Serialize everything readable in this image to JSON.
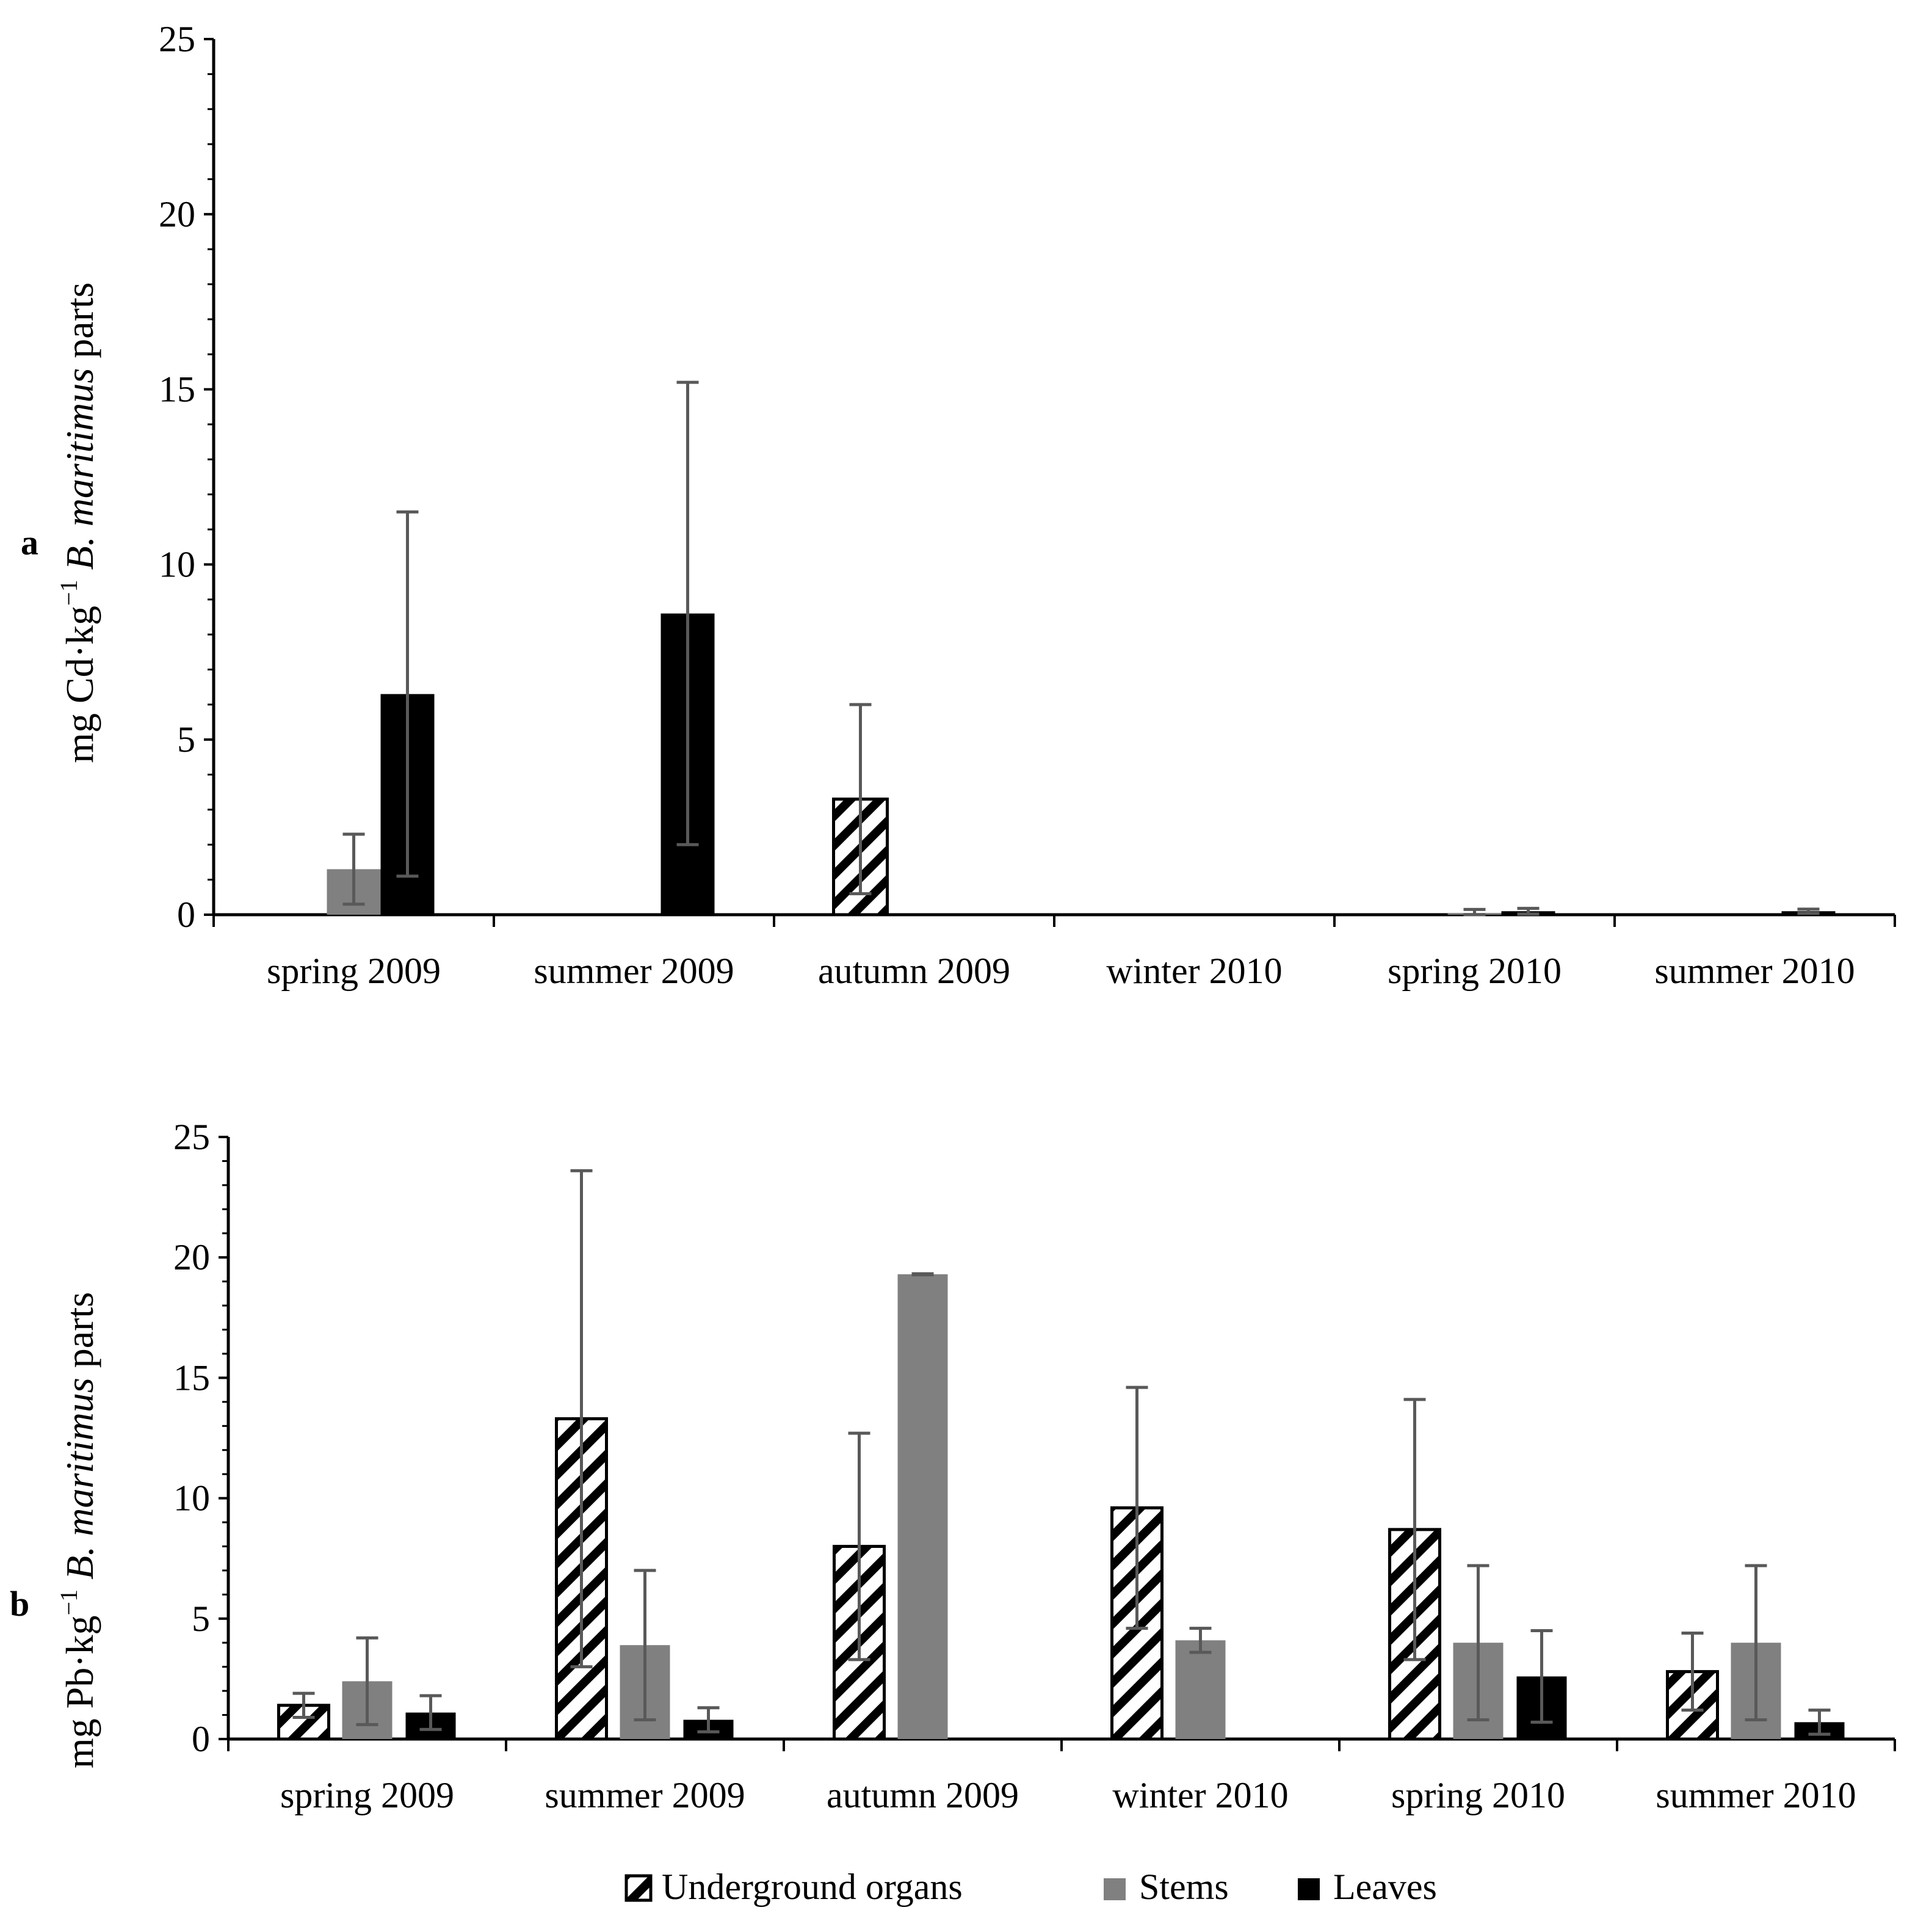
{
  "chart_data": [
    {
      "panel_label": "a",
      "type": "bar",
      "ylabel": {
        "prefix": "mg Cd·kg",
        "superscript": "−1",
        "species": "B. maritimus",
        "suffix": "parts"
      },
      "ylim": [
        0,
        25
      ],
      "yticks": [
        0,
        5,
        10,
        15,
        20,
        25
      ],
      "categories": [
        "spring 2009",
        "summer 2009",
        "autumn 2009",
        "winter 2010",
        "spring 2010",
        "summer 2010"
      ],
      "series": [
        {
          "name": "Underground organs",
          "values": [
            0,
            0,
            3.3,
            0,
            0,
            0
          ],
          "error": [
            0,
            0,
            2.7,
            0,
            0,
            0
          ]
        },
        {
          "name": "Stems",
          "values": [
            1.3,
            0,
            0,
            0,
            0.05,
            0
          ],
          "error": [
            1.0,
            0,
            0,
            0,
            0.1,
            0
          ]
        },
        {
          "name": "Leaves",
          "values": [
            6.3,
            8.6,
            0,
            0,
            0.1,
            0.1
          ],
          "error": [
            5.2,
            6.6,
            0,
            0,
            0.08,
            0.06
          ]
        }
      ],
      "layout": "cd",
      "grid": false
    },
    {
      "panel_label": "b",
      "type": "bar",
      "ylabel": {
        "prefix": "mg Pb·kg",
        "superscript": "−1",
        "species": "B. maritimus",
        "suffix": "parts"
      },
      "ylim": [
        0,
        25
      ],
      "yticks": [
        0,
        5,
        10,
        15,
        20,
        25
      ],
      "categories": [
        "spring 2009",
        "summer 2009",
        "autumn 2009",
        "winter 2010",
        "spring 2010",
        "summer 2010"
      ],
      "series": [
        {
          "name": "Underground organs",
          "values": [
            1.4,
            13.3,
            8.0,
            9.6,
            8.7,
            2.8
          ],
          "error": [
            0.5,
            10.3,
            4.7,
            5.0,
            5.4,
            1.6
          ]
        },
        {
          "name": "Stems",
          "values": [
            2.4,
            3.9,
            19.3,
            4.1,
            4.0,
            4.0
          ],
          "error": [
            1.8,
            3.1,
            0.02,
            0.5,
            3.2,
            3.2
          ]
        },
        {
          "name": "Leaves",
          "values": [
            1.1,
            0.8,
            0,
            0,
            2.6,
            0.7
          ],
          "error": [
            0.7,
            0.5,
            0,
            0,
            1.9,
            0.5
          ]
        }
      ],
      "layout": "pb",
      "grid": false
    }
  ],
  "legend": {
    "placement": "bottom-center",
    "items": [
      {
        "label": "Underground organs",
        "style": "hatched"
      },
      {
        "label": "Stems",
        "color": "#808080"
      },
      {
        "label": "Leaves",
        "color": "#000000"
      }
    ]
  },
  "colors": {
    "stems": "#808080",
    "leaves": "#000000",
    "error_bar": "#595959",
    "hatch": "#000000"
  }
}
